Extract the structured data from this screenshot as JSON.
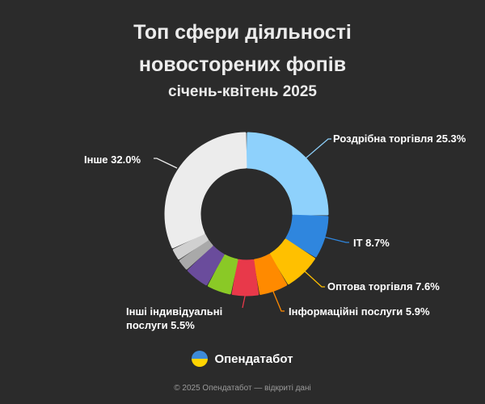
{
  "chart_data": {
    "type": "pie",
    "title_line1": "Топ сфери діяльності",
    "title_line2": "новосторених фопів",
    "subtitle": "січень-квітень 2025",
    "slices": [
      {
        "label": "Роздрібна торгівля",
        "value": 25.3,
        "color": "#8ed1fc",
        "display": "Роздрібна торгівля 25.3%"
      },
      {
        "label": "IT",
        "value": 8.7,
        "color": "#2f86de",
        "display": "IT 8.7%"
      },
      {
        "label": "Оптова торгівля",
        "value": 7.6,
        "color": "#ffc000",
        "display": "Оптова торгівля 7.6%"
      },
      {
        "label": "Інформаційні послуги",
        "value": 5.9,
        "color": "#ff8a00",
        "display": "Інформаційні послуги 5.9%"
      },
      {
        "label": "Інші індивідуальні послуги",
        "value": 5.5,
        "color": "#e8394a",
        "display_line1": "Інші індивідуальні",
        "display_line2": "послуги 5.5%"
      },
      {
        "label": "",
        "value": 5.0,
        "color": "#8ac926"
      },
      {
        "label": "",
        "value": 5.0,
        "color": "#6a4c9c"
      },
      {
        "label": "",
        "value": 2.5,
        "color": "#a9a9a9"
      },
      {
        "label": "",
        "value": 2.5,
        "color": "#d0d0d0"
      },
      {
        "label": "Інше",
        "value": 32.0,
        "color": "#ececec",
        "display": "Інше 32.0%"
      }
    ]
  },
  "brand": {
    "logo_text": "Опендатабот",
    "logo_icon": "opendatabot-logo-icon",
    "footer": "© 2025 Опендатабот — відкриті дані",
    "flag_colors": [
      "#3d8bd9",
      "#ffd400"
    ]
  }
}
